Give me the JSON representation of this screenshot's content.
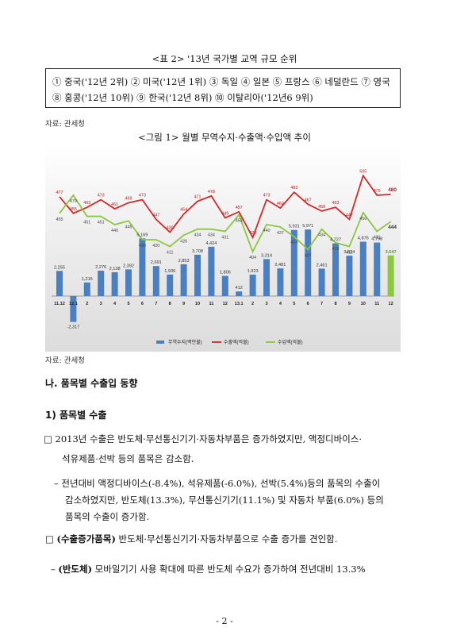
{
  "table2_caption": "<표 2> '13년 국가별 교역 규모 순위",
  "ranking_line1": "① 중국('12년 2위) ② 미국('12년 1위) ③ 독일 ④ 일본 ⑤ 프랑스 ⑥ 네덜란드 ⑦ 영국",
  "ranking_line2": "⑧ 홍콩('12년 10위) ⑨ 한국('12년 8위) ⑩ 이탈리아('12년6 9위)",
  "source1": "자료: 관세청",
  "figure1_caption": "<그림 1> 월별 무역수지·수출액·수입액 추이",
  "source2": "자료: 관세청",
  "section_heading": "나. 품목별 수출입 동향",
  "subsection_heading": "1) 품목별 수출",
  "para1_line1": "□ 2013년 수출은 반도체·무선통신기기·자동차부품은 증가하였지만, 액정디바이스·",
  "para1_line2": "석유제품·선박 등의 품목은 감소함.",
  "para2_line1": "– 전년대비 액정디바이스(-8.4%), 석유제품(-6.0%), 선박(5.4%)등의 품목의 수출이",
  "para2_line2": "감소하였지만, 반도체(13.3%), 무선통신기기(11.1%) 및 자동차 부품(6.0%) 등의",
  "para2_line3": "품목의 수출이 증가함.",
  "para3_box": "□",
  "para3_bold": "(수출증가품목)",
  "para3_rest": " 반도체·무선통신기기·자동차부품으로 수출 증가를 견인함.",
  "para4_dash": "–",
  "para4_bold": "(반도체)",
  "para4_rest": " 모바일기기 사용 확대에 따른 반도체 수요가 증가하여 전년대비 13.3%",
  "page_number": "- 2 -",
  "chart_data": {
    "type": "bar",
    "categories": [
      "11.12",
      "12.1",
      "2",
      "3",
      "4",
      "5",
      "6",
      "7",
      "8",
      "9",
      "10",
      "11",
      "12",
      "13.1",
      "2",
      "3",
      "4",
      "5",
      "6",
      "7",
      "8",
      "9",
      "10",
      "11",
      "12"
    ],
    "series": [
      {
        "name": "무역수지(백만불)",
        "kind": "bar",
        "color": "#4a7fc1",
        "values": [
          2255,
          -2317,
          1216,
          2276,
          2138,
          2392,
          5169,
          2691,
          1930,
          2853,
          3708,
          4424,
          1806,
          412,
          1923,
          3314,
          2481,
          5931,
          5971,
          2461,
          4727,
          3624,
          4876,
          4798,
          3647
        ]
      },
      {
        "name": "수출액(억불)",
        "kind": "line",
        "color": "#d42a2a",
        "values": [
          477,
          455,
          463,
          473,
          461,
          469,
          473,
          447,
          430,
          454,
          471,
          478,
          449,
          457,
          423,
          473,
          462,
          483,
          467,
          458,
          463,
          447,
          505,
          479,
          480
        ]
      },
      {
        "name": "수입액(억불)",
        "kind": "line",
        "color": "#8dc63f",
        "values": [
          455,
          479,
          451,
          451,
          440,
          445,
          420,
          420,
          411,
          426,
          434,
          434,
          431,
          453,
          404,
          440,
          437,
          424,
          407,
          434,
          416,
          411,
          456,
          431,
          444
        ]
      }
    ],
    "legend_position": "bottom",
    "grid": false,
    "highlight_last_color": "#8dc63f"
  },
  "colors": {
    "bar": "#4a7fc1",
    "export_line": "#d42a2a",
    "import_line": "#8dc63f"
  }
}
